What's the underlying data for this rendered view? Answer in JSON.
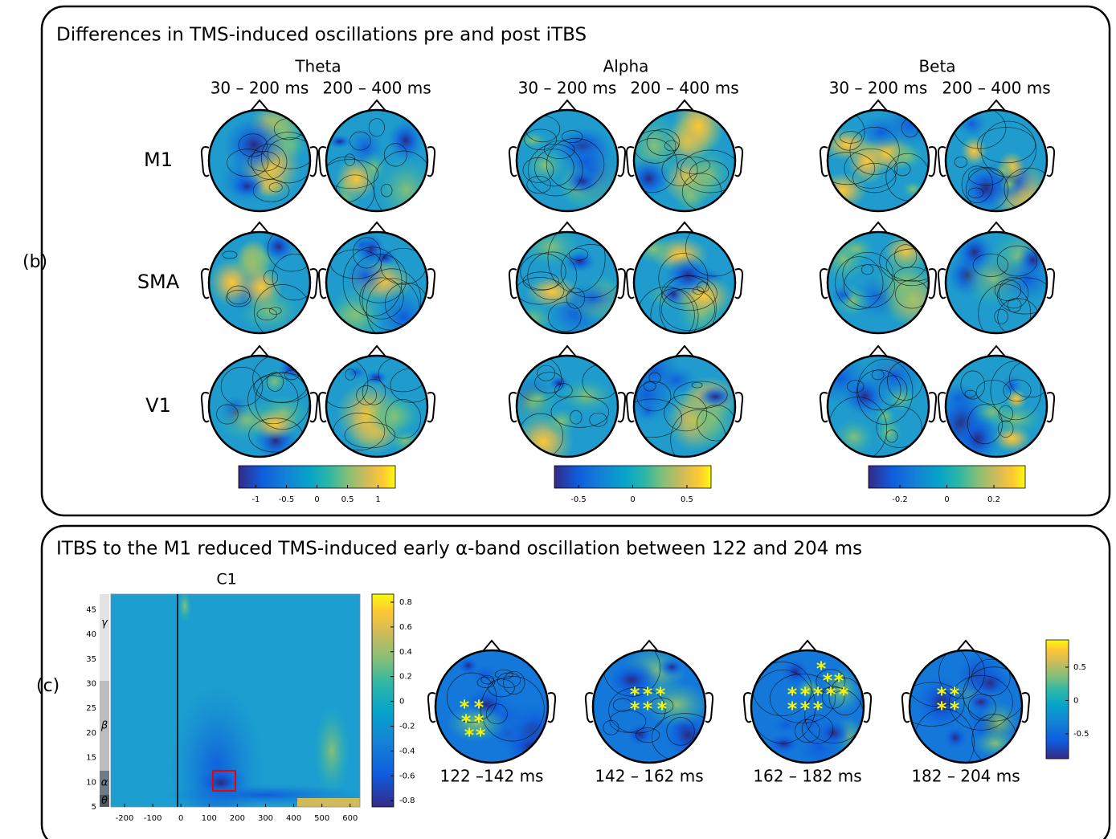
{
  "panel_b": {
    "label": "(b)",
    "title": "Differences in TMS-induced oscillations pre and post iTBS",
    "rows": [
      "M1",
      "SMA",
      "V1"
    ],
    "bands": [
      {
        "name": "Theta",
        "windows": [
          "30 – 200 ms",
          "200 – 400 ms"
        ],
        "colorbar_ticks": [
          -1,
          -0.5,
          0,
          0.5,
          1
        ]
      },
      {
        "name": "Alpha",
        "windows": [
          "30 – 200 ms",
          "200 – 400 ms"
        ],
        "colorbar_ticks": [
          -0.5,
          0,
          0.5
        ]
      },
      {
        "name": "Beta",
        "windows": [
          "30 – 200 ms",
          "200 – 400 ms"
        ],
        "colorbar_ticks": [
          -0.2,
          0,
          0.2
        ]
      }
    ]
  },
  "panel_c": {
    "label": "(c)",
    "title": "ITBS to the M1 reduced TMS-induced early α-band oscillation between 122 and 204 ms",
    "tf_plot": {
      "title": "C1",
      "xticks": [
        -200,
        -100,
        0,
        100,
        200,
        300,
        400,
        500,
        600
      ],
      "yticks": [
        5,
        10,
        15,
        20,
        25,
        30,
        35,
        40,
        45
      ],
      "band_labels": [
        "γ",
        "β",
        "α",
        "θ"
      ],
      "colorbar_ticks": [
        0.8,
        0.6,
        0.4,
        0.2,
        0,
        -0.2,
        -0.4,
        -0.6,
        -0.8
      ]
    },
    "topomap_windows": [
      "122 –142 ms",
      "142 – 162 ms",
      "162 – 182 ms",
      "182 – 204 ms"
    ],
    "colorbar_ticks": [
      0.5,
      0,
      -0.5
    ]
  }
}
